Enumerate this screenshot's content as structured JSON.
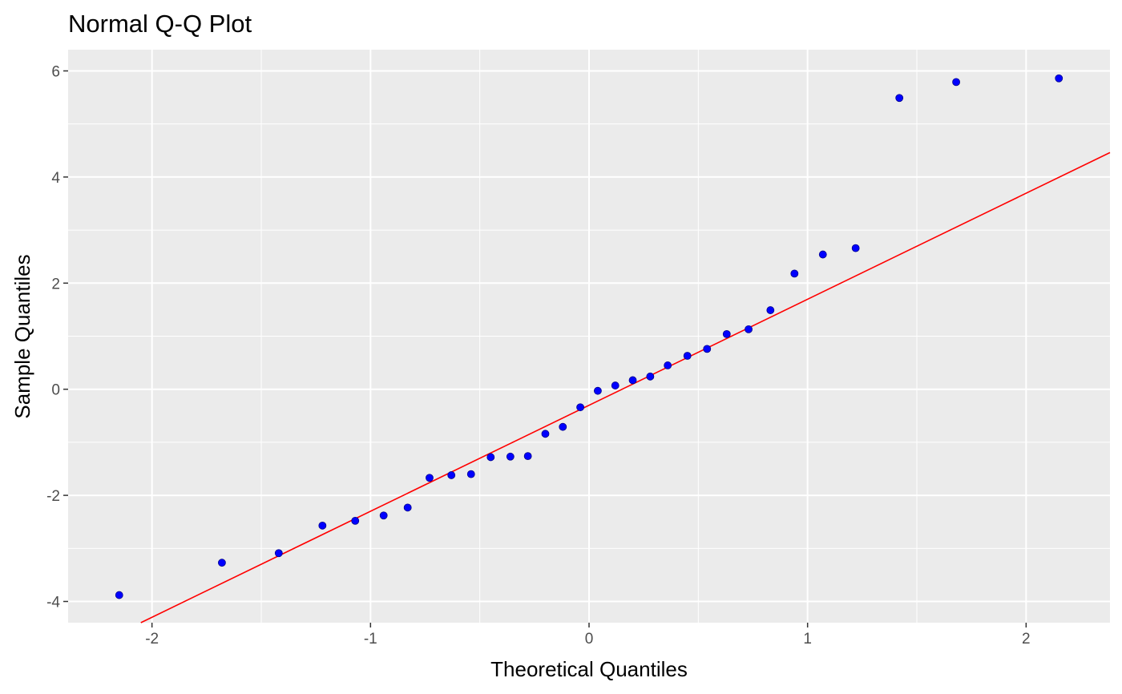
{
  "chart_data": {
    "type": "scatter",
    "title": "Normal Q-Q Plot",
    "xlabel": "Theoretical Quantiles",
    "ylabel": "Sample Quantiles",
    "xlim": [
      -2.3838,
      2.3838
    ],
    "ylim": [
      -4.4,
      6.4
    ],
    "x_ticks": [
      -2,
      -1,
      0,
      1,
      2
    ],
    "x_tick_labels": [
      "-2",
      "-1",
      "0",
      "1",
      "2"
    ],
    "y_ticks": [
      -4,
      -2,
      0,
      2,
      4,
      6
    ],
    "y_tick_labels": [
      "-4",
      "-2",
      "0",
      "2",
      "4",
      "6"
    ],
    "grid": true,
    "points": {
      "x": [
        -2.15,
        -1.68,
        -1.42,
        -1.22,
        -1.07,
        -0.94,
        -0.83,
        -0.73,
        -0.63,
        -0.54,
        -0.45,
        -0.36,
        -0.28,
        -0.2,
        -0.12,
        -0.04,
        0.04,
        0.12,
        0.2,
        0.28,
        0.36,
        0.45,
        0.54,
        0.63,
        0.73,
        0.83,
        0.94,
        1.07,
        1.22,
        1.42,
        1.68,
        2.15
      ],
      "y": [
        -3.88,
        -3.27,
        -3.09,
        -2.57,
        -2.48,
        -2.38,
        -2.23,
        -1.67,
        -1.62,
        -1.6,
        -1.28,
        -1.27,
        -1.26,
        -0.84,
        -0.71,
        -0.34,
        -0.03,
        0.07,
        0.17,
        0.24,
        0.45,
        0.63,
        0.76,
        1.04,
        1.13,
        1.49,
        2.18,
        2.54,
        2.66,
        5.49,
        5.79,
        5.86
      ],
      "color": "#0000ff"
    },
    "reference_line": {
      "intercept": -0.302,
      "slope": 1.998,
      "color": "#ff0000"
    },
    "panel_background": "#ebebeb",
    "grid_color": "#ffffff"
  }
}
